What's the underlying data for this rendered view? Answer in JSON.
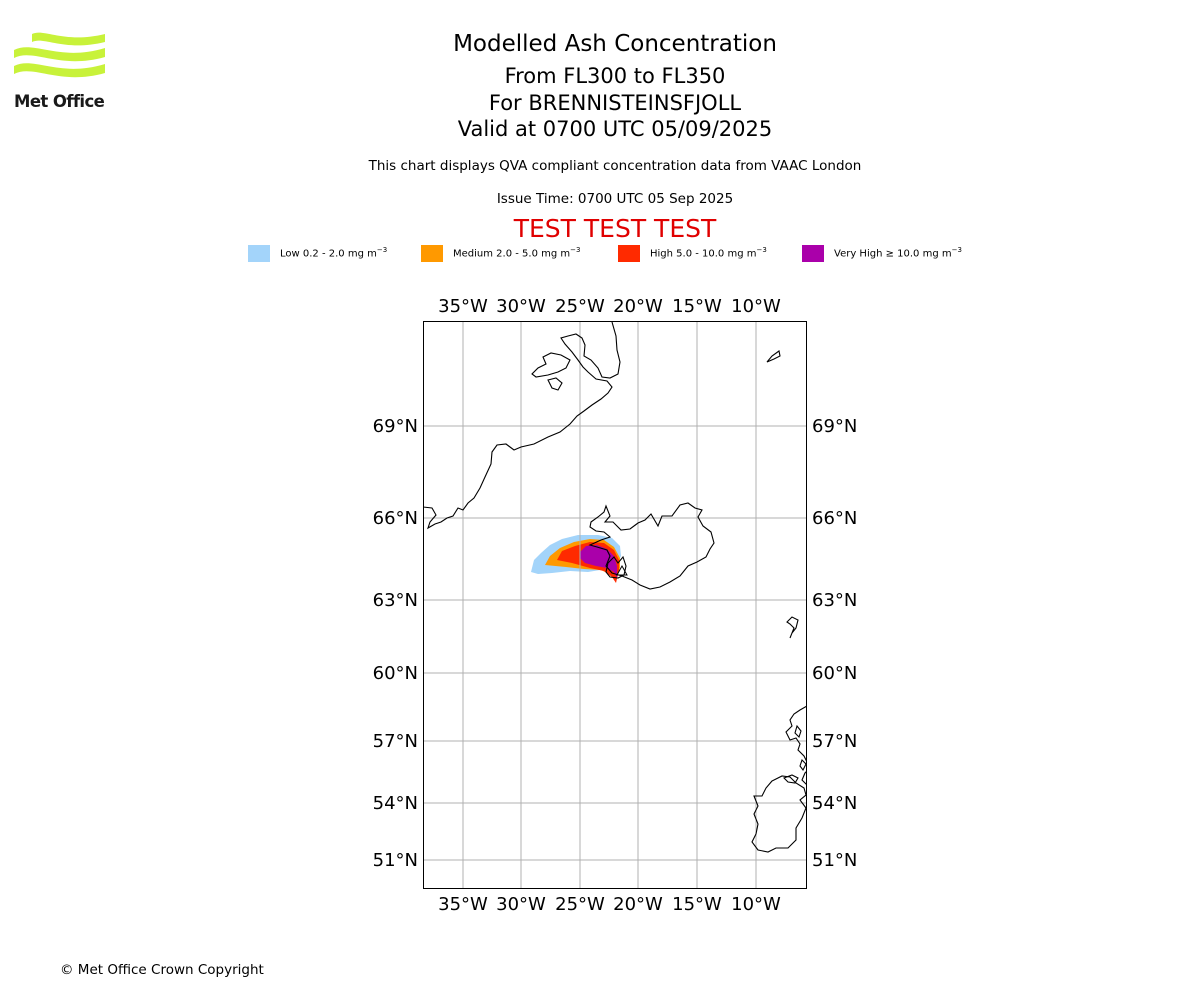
{
  "logo": {
    "brand": "Met Office",
    "brand_color": "#c8f23a"
  },
  "header": {
    "title": "Modelled Ash Concentration",
    "levels": "From FL300 to FL350",
    "volcano": "For BRENNISTEINSFJOLL",
    "valid": "Valid at 0700 UTC 05/09/2025",
    "compliance": "This chart displays QVA compliant concentration data from VAAC London",
    "issue": "Issue Time: 0700 UTC 05 Sep 2025",
    "test_banner": "TEST TEST TEST",
    "test_color": "#e00000"
  },
  "legend": [
    {
      "label": "Low 0.2 - 2.0 mg m",
      "color": "#a3d4fa"
    },
    {
      "label": "Medium 2.0 - 5.0 mg m",
      "color": "#ff9900"
    },
    {
      "label": "High 5.0 - 10.0 mg m",
      "color": "#ff2a00"
    },
    {
      "label": "Very High  ≥  10.0 mg m",
      "color": "#aa00aa"
    }
  ],
  "legend_unit_exponent": "−3",
  "map": {
    "lon_labels": [
      "35°W",
      "30°W",
      "25°W",
      "20°W",
      "15°W",
      "10°W"
    ],
    "lat_labels": [
      "69°N",
      "66°N",
      "63°N",
      "60°N",
      "57°N",
      "54°N",
      "51°N"
    ],
    "grid": true,
    "coastline_color": "#000000",
    "grid_color": "#b0b0b0"
  },
  "footer": {
    "copyright": "© Met Office Crown Copyright"
  }
}
